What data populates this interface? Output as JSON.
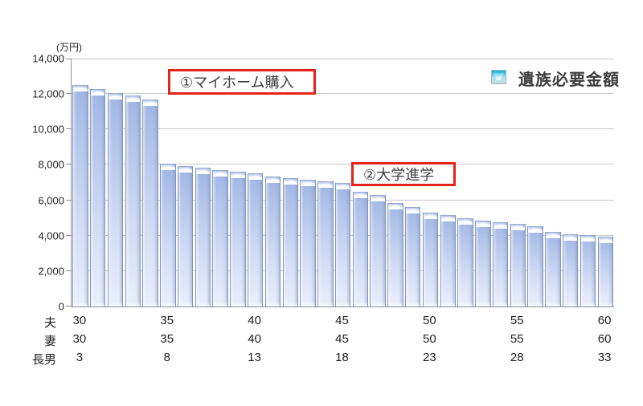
{
  "chart_data": {
    "type": "bar",
    "title": "",
    "legend_position": "top-right",
    "grid": "horizontal",
    "y_axis": {
      "unit_label": "(万円)",
      "min": 0,
      "max": 14000,
      "tick_step": 2000,
      "tick_labels": [
        "0",
        "2,000",
        "4,000",
        "6,000",
        "8,000",
        "10,000",
        "12,000",
        "14,000"
      ]
    },
    "x_axis": {
      "n_bars": 31,
      "tick_indices": [
        0,
        5,
        10,
        15,
        20,
        25,
        30
      ],
      "rows": [
        {
          "label": "夫",
          "tick_values": [
            "30",
            "35",
            "40",
            "45",
            "50",
            "55",
            "60"
          ]
        },
        {
          "label": "妻",
          "tick_values": [
            "30",
            "35",
            "40",
            "45",
            "50",
            "55",
            "60"
          ]
        },
        {
          "label": "長男",
          "tick_values": [
            "3",
            "8",
            "13",
            "18",
            "23",
            "28",
            "33"
          ]
        }
      ]
    },
    "series": [
      {
        "name": "遺族必要金額",
        "swatch_icon": "series-swatch-icon",
        "values": [
          12500,
          12300,
          12050,
          11900,
          11700,
          8050,
          7950,
          7850,
          7700,
          7600,
          7500,
          7350,
          7250,
          7150,
          7050,
          7000,
          6500,
          6300,
          5850,
          5600,
          5300,
          5150,
          5000,
          4850,
          4750,
          4650,
          4550,
          4200,
          4100,
          4050,
          3950
        ]
      }
    ],
    "annotations": [
      {
        "label": "①マイホーム購入",
        "at_bar_index": 5
      },
      {
        "label": "②大学進学",
        "at_bar_index": 16
      }
    ],
    "colors": {
      "bar_top": "#9eb5e3",
      "bar_bottom": "#eaeffb",
      "bar_border": "#8296c3",
      "gridline": "#c9c9c9",
      "axis": "#8e8e8e",
      "annotation_border": "#e3231c",
      "legend_icon_top": "#23b4d8",
      "legend_icon_bottom": "#c9dde8",
      "text": "#1f1f1f"
    }
  }
}
